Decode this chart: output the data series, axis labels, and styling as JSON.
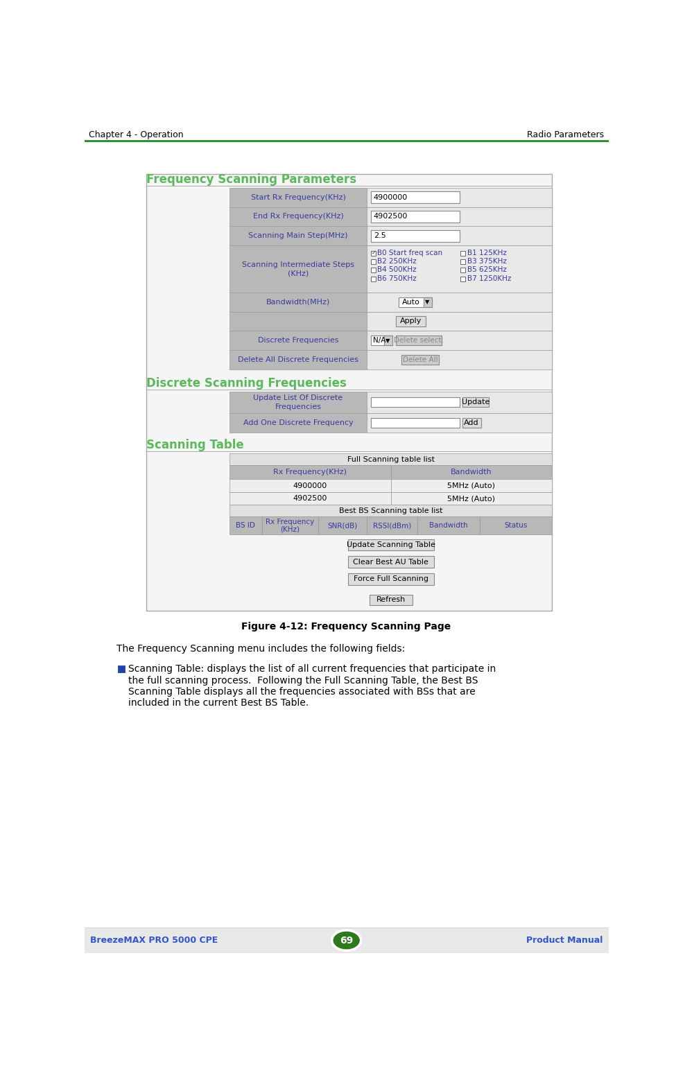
{
  "page_bg": "#ffffff",
  "footer_bg": "#e8e8e8",
  "header_text_left": "Chapter 4 - Operation",
  "header_text_right": "Radio Parameters",
  "header_line_color": "#228B22",
  "footer_text_left": "BreezeMAX PRO 5000 CPE",
  "footer_text_right": "Product Manual",
  "footer_page_num": "69",
  "footer_oval_color": "#2d7a1e",
  "section1_title": "Frequency Scanning Parameters",
  "section2_title": "Discrete Scanning Frequencies",
  "section3_title": "Scanning Table",
  "section_title_color": "#5cb85c",
  "section_line_color": "#aaaaaa",
  "label_bg": "#b8b8b8",
  "label_text_color": "#3a3a9c",
  "input_bg": "#ffffff",
  "panel_bg": "#e8e8e8",
  "figure_caption": "Figure 4-12: Frequency Scanning Page",
  "body_text1": "The Frequency Scanning menu includes the following fields:",
  "bullet_color": "#2244aa",
  "bullet_lines": [
    "Scanning Table: displays the list of all current frequencies that participate in",
    "the full scanning process.  Following the Full Scanning Table, the Best BS",
    "Scanning Table displays all the frequencies associated with BSs that are",
    "included in the current Best BS Table."
  ]
}
